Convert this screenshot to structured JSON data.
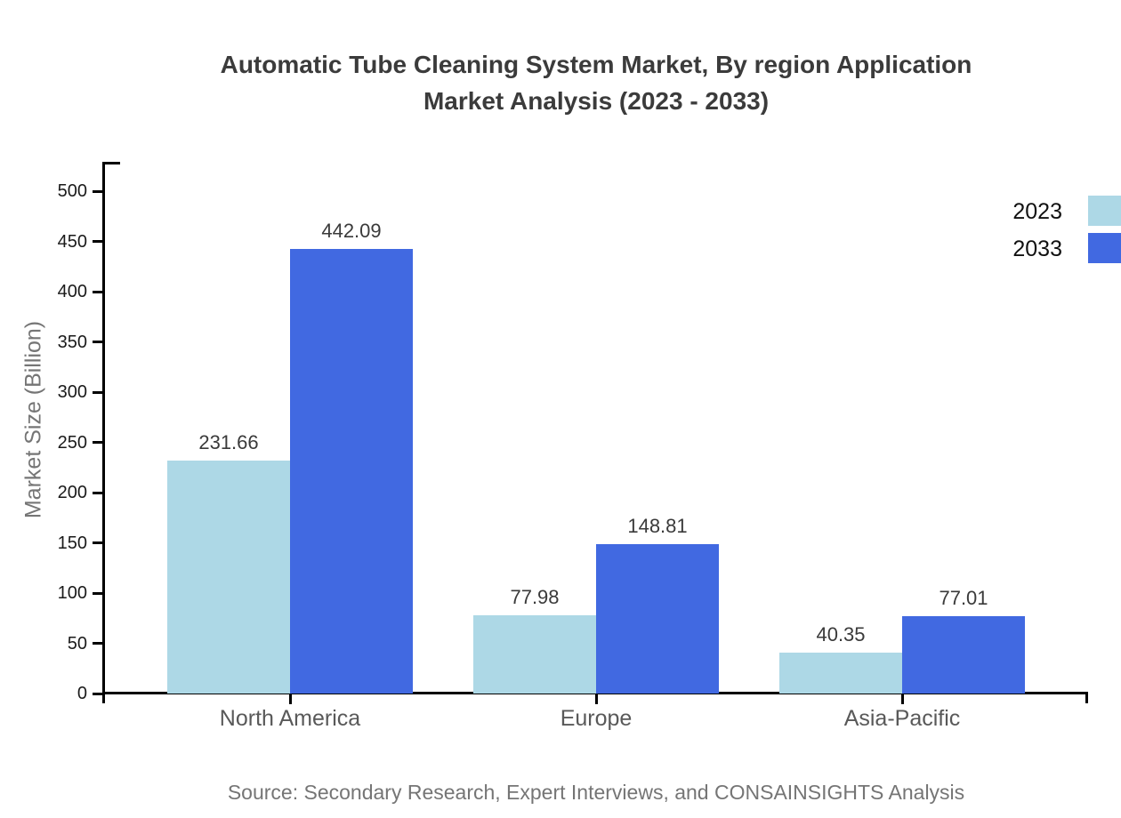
{
  "title": {
    "line1": "Automatic Tube Cleaning System Market, By region Application",
    "line2": "Market Analysis (2023 - 2033)"
  },
  "source": "Source: Secondary Research, Expert Interviews, and CONSAINSIGHTS Analysis",
  "chart_data": {
    "type": "bar",
    "title": "Automatic Tube Cleaning System Market, By region Application Market Analysis (2023 - 2033)",
    "categories": [
      "North America",
      "Europe",
      "Asia-Pacific"
    ],
    "series": [
      {
        "name": "2023",
        "color": "#ADD8E6",
        "values": [
          231.66,
          77.98,
          40.35
        ]
      },
      {
        "name": "2033",
        "color": "#4169E1",
        "values": [
          442.09,
          148.81,
          77.01
        ]
      }
    ],
    "xlabel": "",
    "ylabel": "Market Size (Billion)",
    "ylim": [
      0,
      500
    ],
    "ytick_step": 50,
    "grid": false,
    "legend_position": "top-right",
    "value_labels": true,
    "value_label_decimals": 2
  }
}
